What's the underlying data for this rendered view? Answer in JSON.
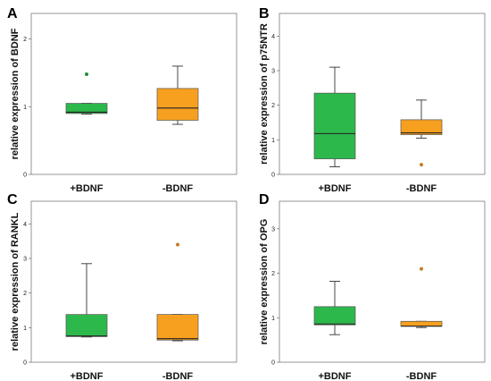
{
  "colors": {
    "green": "#2db84c",
    "orange": "#f7a01f",
    "outlier_green": "#1f8f3a",
    "outlier_orange": "#c87a2a"
  },
  "chart_data": [
    {
      "panel": "A",
      "type": "box",
      "ylabel": "relative expression of BDNF",
      "categories": [
        "+BDNF",
        "-BDNF"
      ],
      "yticks": [
        0,
        1,
        2
      ],
      "ylim": [
        0,
        2.3
      ],
      "series": [
        {
          "category": "+BDNF",
          "color": "green",
          "min": 0.89,
          "q1": 0.9,
          "median": 0.92,
          "q3": 1.05,
          "max": 1.05,
          "outliers": [
            1.48
          ]
        },
        {
          "category": "-BDNF",
          "color": "orange",
          "min": 0.74,
          "q1": 0.8,
          "median": 0.98,
          "q3": 1.27,
          "max": 1.6,
          "outliers": []
        }
      ]
    },
    {
      "panel": "B",
      "type": "box",
      "ylabel": "relative expression of p75NTR",
      "categories": [
        "+BDNF",
        "-BDNF"
      ],
      "yticks": [
        0,
        1,
        2,
        3,
        4
      ],
      "ylim": [
        0,
        4.5
      ],
      "series": [
        {
          "category": "+BDNF",
          "color": "green",
          "min": 0.22,
          "q1": 0.45,
          "median": 1.18,
          "q3": 2.35,
          "max": 3.1,
          "outliers": []
        },
        {
          "category": "-BDNF",
          "color": "orange",
          "min": 1.05,
          "q1": 1.15,
          "median": 1.2,
          "q3": 1.58,
          "max": 2.15,
          "outliers": [
            0.28
          ]
        }
      ]
    },
    {
      "panel": "C",
      "type": "box",
      "ylabel": "relative expression of RANKL",
      "categories": [
        "+BDNF",
        "-BDNF"
      ],
      "yticks": [
        0,
        1,
        2,
        3,
        4
      ],
      "ylim": [
        0,
        4.5
      ],
      "series": [
        {
          "category": "+BDNF",
          "color": "green",
          "min": 0.73,
          "q1": 0.74,
          "median": 0.76,
          "q3": 1.38,
          "max": 2.85,
          "outliers": []
        },
        {
          "category": "-BDNF",
          "color": "orange",
          "min": 0.62,
          "q1": 0.64,
          "median": 0.68,
          "q3": 1.38,
          "max": 1.38,
          "outliers": [
            3.4
          ]
        }
      ]
    },
    {
      "panel": "D",
      "type": "box",
      "ylabel": "relative expression of OPG",
      "categories": [
        "+BDNF",
        "-BDNF"
      ],
      "yticks": [
        0,
        1,
        2,
        3
      ],
      "ylim": [
        0,
        3.5
      ],
      "series": [
        {
          "category": "+BDNF",
          "color": "green",
          "min": 0.62,
          "q1": 0.84,
          "median": 0.86,
          "q3": 1.25,
          "max": 1.82,
          "outliers": []
        },
        {
          "category": "-BDNF",
          "color": "orange",
          "min": 0.78,
          "q1": 0.81,
          "median": 0.81,
          "q3": 0.92,
          "max": 0.92,
          "outliers": [
            2.1
          ]
        }
      ]
    }
  ]
}
